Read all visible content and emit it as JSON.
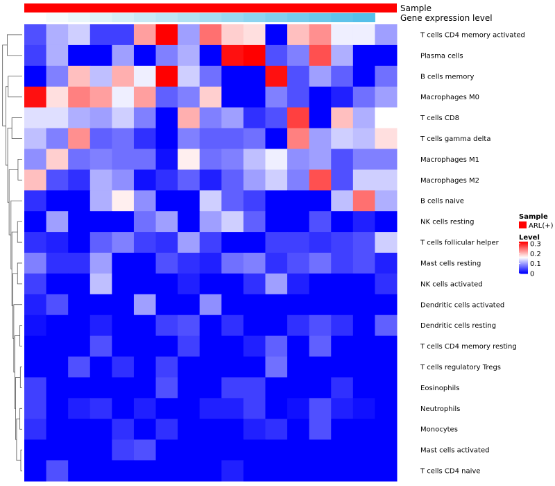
{
  "chart_data": {
    "type": "heatmap",
    "annotations": {
      "sample_label": "Sample",
      "expression_label": "Gene expression level",
      "expression_colors": [
        "#ffffff",
        "#f5fbfd",
        "#eaf6fb",
        "#dff2fa",
        "#d4eef8",
        "#c8e9f6",
        "#bde5f5",
        "#b1e1f3",
        "#a5dcf2",
        "#99d8f1",
        "#8dd4f0",
        "#81cfee",
        "#75cbed",
        "#69c7eb",
        "#5fc3ea",
        "#56c0e9"
      ],
      "sample_color": "#ff0000"
    },
    "legend": {
      "sample_title": "Sample",
      "sample_entries": [
        {
          "label": "ARL(+)",
          "color": "#ff0000"
        }
      ],
      "level_title": "Level",
      "level_ticks": [
        "0.3",
        "0.2",
        "0.1",
        "0"
      ],
      "level_tick_values": [
        0.3,
        0.2,
        0.1,
        0
      ],
      "scale_min": 0,
      "scale_max": 0.32,
      "scale_mid": 0.16
    },
    "rows": [
      "T cells CD4 memory activated",
      "Plasma cells",
      "B cells memory",
      "Macrophages M0",
      "T cells CD8",
      "T cells gamma delta",
      "Macrophages M1",
      "Macrophages M2",
      "B cells naive",
      "NK cells resting",
      "T cells follicular helper",
      "Mast cells resting",
      "NK cells activated",
      "Dendritic cells activated",
      "Dendritic cells resting",
      "T cells CD4 memory resting",
      "T cells regulatory  Tregs",
      "Eosinophils",
      "Neutrophils",
      "Monocytes",
      "Mast cells activated",
      "T cells CD4 naive"
    ],
    "values": [
      [
        0.05,
        0.11,
        0.13,
        0.04,
        0.04,
        0.22,
        0.32,
        0.1,
        0.25,
        0.19,
        0.18,
        0.0,
        0.2,
        0.23,
        0.15,
        0.15,
        0.1
      ],
      [
        0.04,
        0.11,
        0.0,
        0.0,
        0.1,
        0.0,
        0.08,
        0.11,
        0.0,
        0.31,
        0.32,
        0.05,
        0.08,
        0.27,
        0.11,
        0.0,
        0.0
      ],
      [
        0.0,
        0.08,
        0.2,
        0.12,
        0.21,
        0.15,
        0.32,
        0.13,
        0.07,
        0.0,
        0.0,
        0.31,
        0.05,
        0.1,
        0.06,
        0.0,
        0.07
      ],
      [
        0.31,
        0.18,
        0.24,
        0.22,
        0.15,
        0.22,
        0.06,
        0.08,
        0.19,
        0.0,
        0.0,
        0.08,
        0.05,
        0.0,
        0.02,
        0.07,
        0.1
      ],
      [
        0.14,
        0.14,
        0.11,
        0.1,
        0.13,
        0.08,
        0.0,
        0.21,
        0.08,
        0.1,
        0.03,
        0.05,
        0.28,
        0.0,
        0.2,
        0.11,
        0.16
      ],
      [
        0.12,
        0.08,
        0.23,
        0.06,
        0.07,
        0.03,
        0.0,
        0.08,
        0.06,
        0.06,
        0.07,
        0.0,
        0.24,
        0.1,
        0.13,
        0.12,
        0.18
      ],
      [
        0.09,
        0.19,
        0.07,
        0.08,
        0.07,
        0.07,
        0.01,
        0.17,
        0.07,
        0.08,
        0.12,
        0.15,
        0.09,
        0.1,
        0.05,
        0.08,
        0.08
      ],
      [
        0.2,
        0.05,
        0.03,
        0.11,
        0.09,
        0.01,
        0.03,
        0.06,
        0.02,
        0.06,
        0.1,
        0.13,
        0.08,
        0.27,
        0.05,
        0.13,
        0.13
      ],
      [
        0.03,
        0.0,
        0.0,
        0.11,
        0.17,
        0.09,
        0.0,
        0.0,
        0.13,
        0.06,
        0.04,
        0.0,
        0.0,
        0.0,
        0.12,
        0.25,
        0.11
      ],
      [
        0.0,
        0.1,
        0.0,
        0.0,
        0.0,
        0.07,
        0.1,
        0.0,
        0.1,
        0.13,
        0.06,
        0.0,
        0.0,
        0.05,
        0.0,
        0.02,
        0.0
      ],
      [
        0.03,
        0.02,
        0.0,
        0.06,
        0.08,
        0.04,
        0.03,
        0.1,
        0.04,
        0.0,
        0.0,
        0.04,
        0.04,
        0.03,
        0.04,
        0.05,
        0.13
      ],
      [
        0.08,
        0.03,
        0.03,
        0.1,
        0.0,
        0.0,
        0.05,
        0.03,
        0.02,
        0.07,
        0.08,
        0.03,
        0.05,
        0.07,
        0.04,
        0.05,
        0.02
      ],
      [
        0.04,
        0.0,
        0.0,
        0.12,
        0.0,
        0.0,
        0.0,
        0.02,
        0.0,
        0.0,
        0.03,
        0.1,
        0.02,
        0.0,
        0.0,
        0.0,
        0.03
      ],
      [
        0.02,
        0.05,
        0.0,
        0.0,
        0.0,
        0.1,
        0.0,
        0.0,
        0.09,
        0.0,
        0.0,
        0.0,
        0.0,
        0.0,
        0.0,
        0.0,
        0.0
      ],
      [
        0.01,
        0.0,
        0.0,
        0.02,
        0.0,
        0.0,
        0.04,
        0.05,
        0.0,
        0.03,
        0.0,
        0.0,
        0.03,
        0.05,
        0.03,
        0.0,
        0.06
      ],
      [
        0.0,
        0.0,
        0.0,
        0.05,
        0.0,
        0.0,
        0.0,
        0.04,
        0.0,
        0.0,
        0.02,
        0.06,
        0.0,
        0.06,
        0.0,
        0.0,
        0.0
      ],
      [
        0.0,
        0.0,
        0.05,
        0.0,
        0.03,
        0.0,
        0.04,
        0.0,
        0.0,
        0.0,
        0.0,
        0.07,
        0.0,
        0.0,
        0.0,
        0.0,
        0.0
      ],
      [
        0.04,
        0.0,
        0.0,
        0.0,
        0.0,
        0.0,
        0.05,
        0.0,
        0.0,
        0.04,
        0.04,
        0.0,
        0.0,
        0.0,
        0.03,
        0.0,
        0.0
      ],
      [
        0.04,
        0.0,
        0.02,
        0.03,
        0.0,
        0.02,
        0.0,
        0.0,
        0.02,
        0.02,
        0.04,
        0.0,
        0.01,
        0.05,
        0.02,
        0.01,
        0.0
      ],
      [
        0.03,
        0.0,
        0.0,
        0.0,
        0.03,
        0.0,
        0.03,
        0.0,
        0.0,
        0.0,
        0.02,
        0.03,
        0.0,
        0.05,
        0.0,
        0.0,
        0.0
      ],
      [
        0.0,
        0.0,
        0.0,
        0.0,
        0.04,
        0.05,
        0.0,
        0.0,
        0.0,
        0.0,
        0.0,
        0.0,
        0.0,
        0.0,
        0.0,
        0.0,
        0.0
      ],
      [
        0.0,
        0.05,
        0.0,
        0.0,
        0.0,
        0.0,
        0.0,
        0.0,
        0.0,
        0.02,
        0.0,
        0.0,
        0.0,
        0.0,
        0.0,
        0.0,
        0.0
      ]
    ],
    "dendrogram": [
      {
        "a": 20,
        "b": 21,
        "h": 0.3
      },
      {
        "a": 16,
        "b": 17,
        "h": 0.4
      },
      {
        "a": 18,
        "b": 19,
        "h": 0.5
      },
      {
        "a": 14,
        "b": 15,
        "h": 0.5
      },
      {
        "a": 6,
        "b": 7,
        "h": 0.9
      },
      {
        "a": 9,
        "b": 10,
        "h": 1.0
      },
      {
        "a": 11,
        "b": 12,
        "h": 1.0
      },
      {
        "a": "i2",
        "b": "i0",
        "h": 1.2
      },
      {
        "a": "i1",
        "b": "i7",
        "h": 1.4
      },
      {
        "a": "i3",
        "b": "i8",
        "h": 1.6
      },
      {
        "a": 13,
        "b": "i9",
        "h": 1.8
      },
      {
        "a": "i6",
        "b": "i10",
        "h": 2.0
      },
      {
        "a": "i5",
        "b": "i11",
        "h": 2.2
      },
      {
        "a": 8,
        "b": "i12",
        "h": 2.4
      },
      {
        "a": 4,
        "b": 5,
        "h": 2.2
      },
      {
        "a": "i4",
        "b": "i13",
        "h": 2.8
      },
      {
        "a": "i14",
        "b": "i15",
        "h": 3.1
      },
      {
        "a": 2,
        "b": 3,
        "h": 3.0
      },
      {
        "a": "i17",
        "b": "i16",
        "h": 3.5
      },
      {
        "a": 0,
        "b": 1,
        "h": 3.2
      },
      {
        "a": "i19",
        "b": "i18",
        "h": 4.2
      }
    ]
  }
}
